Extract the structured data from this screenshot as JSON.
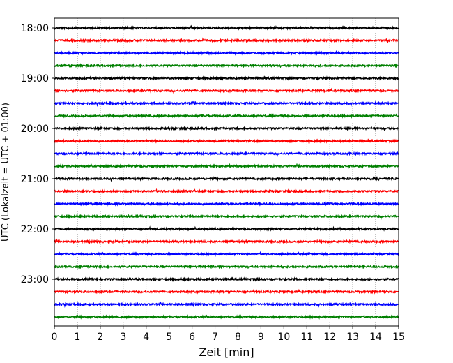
{
  "chart_data": {
    "type": "line",
    "title": "",
    "xlabel": "Zeit  [min]",
    "ylabel": "UTC (Lokalzeit = UTC + 01:00)",
    "xlim": [
      0,
      15
    ],
    "x_ticks": [
      0,
      1,
      2,
      3,
      4,
      5,
      6,
      7,
      8,
      9,
      10,
      11,
      12,
      13,
      14,
      15
    ],
    "y_tick_labels": [
      "18:00",
      "19:00",
      "20:00",
      "21:00",
      "22:00",
      "23:00"
    ],
    "grid": "vertical dotted lines at each minute",
    "trace_interval_min": 15,
    "start_time": "18:00",
    "end_time": "23:45",
    "traces_per_hour": 4,
    "color_cycle": [
      "#000000",
      "#ff0000",
      "#0000ff",
      "#008000"
    ],
    "series": [
      {
        "label": "18:00",
        "color": "#000000"
      },
      {
        "label": "18:15",
        "color": "#ff0000"
      },
      {
        "label": "18:30",
        "color": "#0000ff"
      },
      {
        "label": "18:45",
        "color": "#008000"
      },
      {
        "label": "19:00",
        "color": "#000000"
      },
      {
        "label": "19:15",
        "color": "#ff0000"
      },
      {
        "label": "19:30",
        "color": "#0000ff"
      },
      {
        "label": "19:45",
        "color": "#008000"
      },
      {
        "label": "20:00",
        "color": "#000000"
      },
      {
        "label": "20:15",
        "color": "#ff0000"
      },
      {
        "label": "20:30",
        "color": "#0000ff"
      },
      {
        "label": "20:45",
        "color": "#008000"
      },
      {
        "label": "21:00",
        "color": "#000000"
      },
      {
        "label": "21:15",
        "color": "#ff0000"
      },
      {
        "label": "21:30",
        "color": "#0000ff"
      },
      {
        "label": "21:45",
        "color": "#008000"
      },
      {
        "label": "22:00",
        "color": "#000000"
      },
      {
        "label": "22:15",
        "color": "#ff0000"
      },
      {
        "label": "22:30",
        "color": "#0000ff"
      },
      {
        "label": "22:45",
        "color": "#008000"
      },
      {
        "label": "23:00",
        "color": "#000000"
      },
      {
        "label": "23:15",
        "color": "#ff0000"
      },
      {
        "label": "23:30",
        "color": "#0000ff"
      },
      {
        "label": "23:45",
        "color": "#008000"
      }
    ]
  }
}
